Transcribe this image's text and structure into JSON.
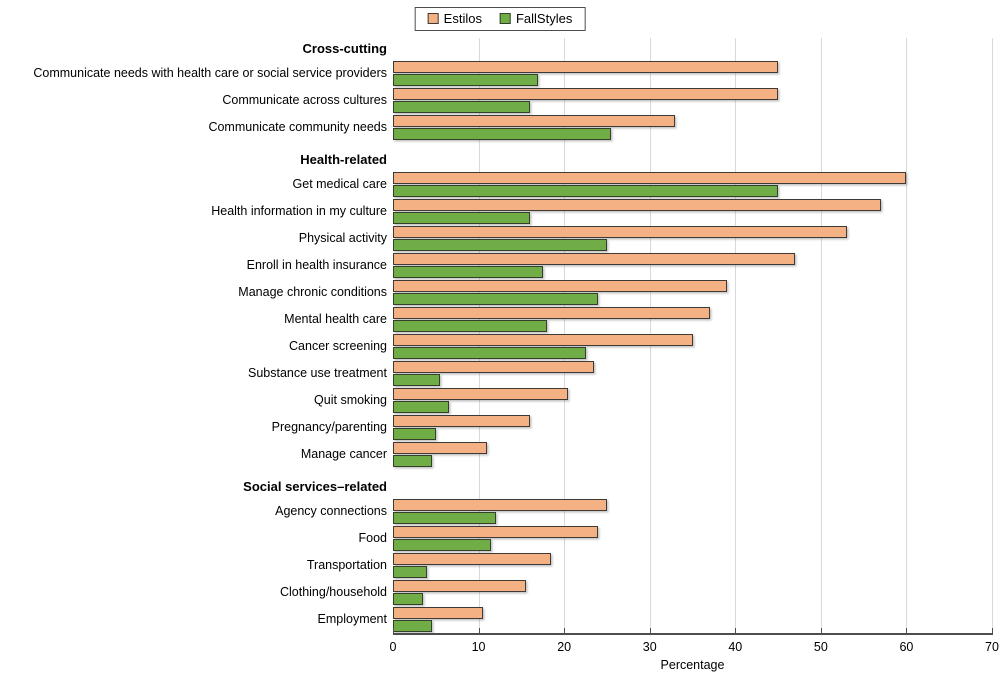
{
  "chart_data": {
    "type": "bar",
    "orientation": "horizontal",
    "xlabel": "Percentage",
    "xlim": [
      0,
      70
    ],
    "xticks": [
      0,
      10,
      20,
      30,
      40,
      50,
      60,
      70
    ],
    "grid": "vertical-light-gray",
    "legend_position": "top-center",
    "legend": [
      {
        "label": "Estilos",
        "color": "#F4B183"
      },
      {
        "label": "FallStyles",
        "color": "#70AD47"
      }
    ],
    "groups": [
      {
        "header": "Cross-cutting",
        "rows": [
          {
            "label": "Communicate needs with health care or social service providers",
            "estilos": 45,
            "fallstyles": 17
          },
          {
            "label": "Communicate across cultures",
            "estilos": 45,
            "fallstyles": 16
          },
          {
            "label": "Communicate community needs",
            "estilos": 33,
            "fallstyles": 25.5
          }
        ]
      },
      {
        "header": "Health-related",
        "rows": [
          {
            "label": "Get medical care",
            "estilos": 60,
            "fallstyles": 45
          },
          {
            "label": "Health information in my culture",
            "estilos": 57,
            "fallstyles": 16
          },
          {
            "label": "Physical activity",
            "estilos": 53,
            "fallstyles": 25
          },
          {
            "label": "Enroll in health insurance",
            "estilos": 47,
            "fallstyles": 17.5
          },
          {
            "label": "Manage chronic conditions",
            "estilos": 39,
            "fallstyles": 24
          },
          {
            "label": "Mental health care",
            "estilos": 37,
            "fallstyles": 18
          },
          {
            "label": "Cancer screening",
            "estilos": 35,
            "fallstyles": 22.5
          },
          {
            "label": "Substance use treatment",
            "estilos": 23.5,
            "fallstyles": 5.5
          },
          {
            "label": "Quit smoking",
            "estilos": 20.5,
            "fallstyles": 6.5
          },
          {
            "label": "Pregnancy/parenting",
            "estilos": 16,
            "fallstyles": 5
          },
          {
            "label": "Manage cancer",
            "estilos": 11,
            "fallstyles": 4.5
          }
        ]
      },
      {
        "header": "Social services–related",
        "rows": [
          {
            "label": "Agency connections",
            "estilos": 25,
            "fallstyles": 12
          },
          {
            "label": "Food",
            "estilos": 24,
            "fallstyles": 11.5
          },
          {
            "label": "Transportation",
            "estilos": 18.5,
            "fallstyles": 4
          },
          {
            "label": "Clothing/household",
            "estilos": 15.5,
            "fallstyles": 3.5
          },
          {
            "label": "Employment",
            "estilos": 10.5,
            "fallstyles": 4.5
          }
        ]
      }
    ],
    "colors": {
      "estilos_fill": "#F4B183",
      "fallstyles_fill": "#70AD47",
      "bar_border": "#3f3a35",
      "gridline": "#D9D9D9",
      "axis_line": "#4d4d4d"
    }
  }
}
